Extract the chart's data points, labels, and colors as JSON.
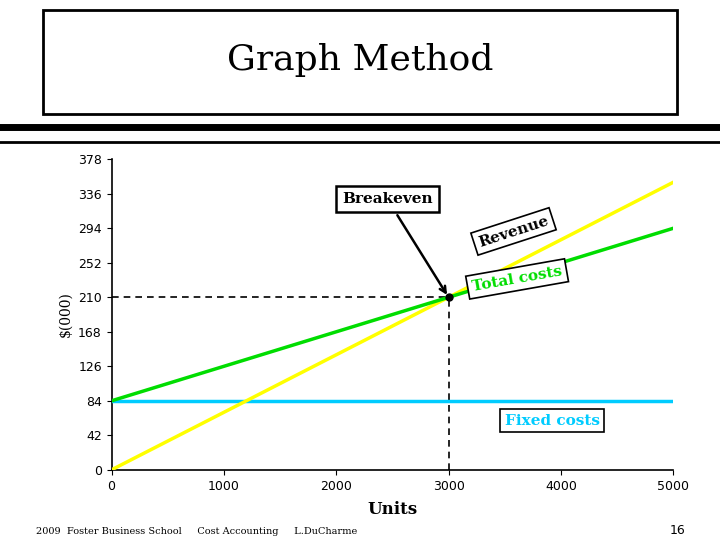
{
  "title": "Graph Method",
  "xlabel": "Units",
  "ylabel": "$(000)",
  "yticks": [
    0,
    42,
    84,
    126,
    168,
    210,
    252,
    294,
    336,
    378
  ],
  "xticks": [
    0,
    1000,
    2000,
    3000,
    4000,
    5000
  ],
  "xlim": [
    0,
    5000
  ],
  "ylim": [
    0,
    378
  ],
  "fixed_cost": 84,
  "breakeven_x": 3000,
  "breakeven_y": 210,
  "revenue_slope": 0.07,
  "total_cost_intercept": 84,
  "total_cost_slope": 0.042,
  "fixed_color": "#00ccff",
  "revenue_color": "#ffff00",
  "total_cost_color": "#00dd00",
  "breakeven_label": "Breakeven",
  "revenue_label": "Revenue",
  "total_costs_label": "Total costs",
  "fixed_costs_label": "Fixed costs",
  "footer": "2009  Foster Business School     Cost Accounting     L.DuCharme",
  "page_num": "16"
}
